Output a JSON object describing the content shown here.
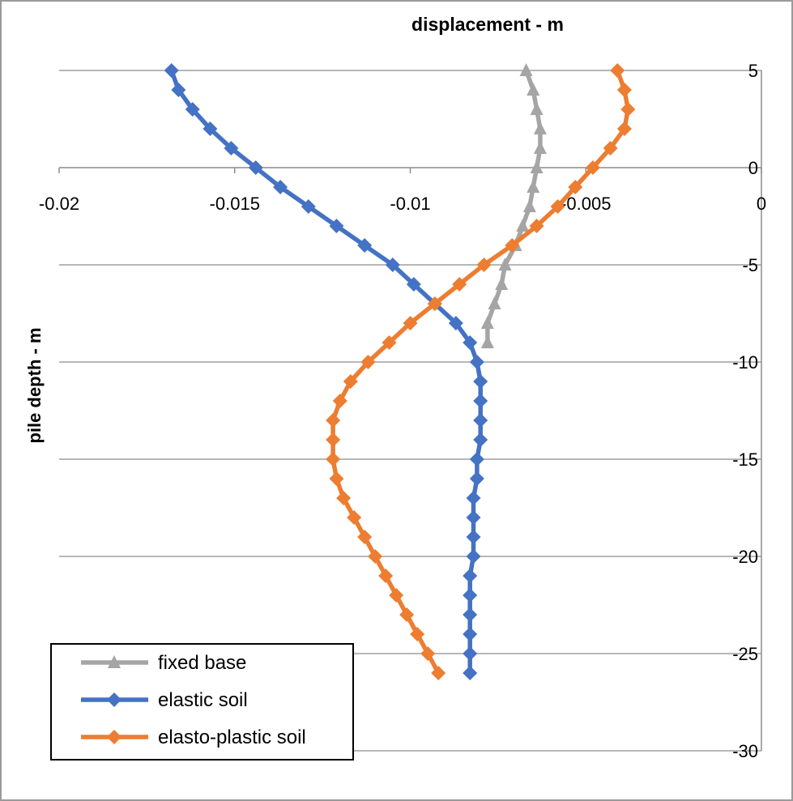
{
  "chart_data": {
    "type": "line",
    "title": "displacement - m",
    "xlabel": "displacement - m",
    "ylabel": "pile depth - m",
    "xlim": [
      -0.02,
      0
    ],
    "ylim": [
      -30,
      5
    ],
    "x_ticks": [
      -0.02,
      -0.015,
      -0.01,
      -0.005,
      0
    ],
    "x_tick_labels": [
      "-0.02",
      "-0.015",
      "-0.01",
      "-0.005",
      "0"
    ],
    "y_ticks": [
      5,
      0,
      -5,
      -10,
      -15,
      -20,
      -25,
      -30
    ],
    "y_tick_labels": [
      "5",
      "0",
      "-5",
      "-10",
      "-15",
      "-20",
      "-25",
      "-30"
    ],
    "x_axis_position": "top, crossing at depth 0",
    "y_axis_position": "right",
    "grid": "horizontal",
    "legend_position": "bottom-left",
    "series": [
      {
        "name": "fixed base",
        "color": "#a5a5a5",
        "marker": "triangle",
        "points": [
          {
            "x": -0.0067,
            "y": 5
          },
          {
            "x": -0.0065,
            "y": 4
          },
          {
            "x": -0.0064,
            "y": 3
          },
          {
            "x": -0.0063,
            "y": 2
          },
          {
            "x": -0.0063,
            "y": 1
          },
          {
            "x": -0.0064,
            "y": 0
          },
          {
            "x": -0.0065,
            "y": -1
          },
          {
            "x": -0.0066,
            "y": -2
          },
          {
            "x": -0.0068,
            "y": -3
          },
          {
            "x": -0.007,
            "y": -4
          },
          {
            "x": -0.0073,
            "y": -5
          },
          {
            "x": -0.0074,
            "y": -6
          },
          {
            "x": -0.0076,
            "y": -7
          },
          {
            "x": -0.0078,
            "y": -8
          },
          {
            "x": -0.0078,
            "y": -9
          }
        ]
      },
      {
        "name": "elastic soil",
        "color": "#4472c4",
        "marker": "diamond",
        "points": [
          {
            "x": -0.0168,
            "y": 5
          },
          {
            "x": -0.0166,
            "y": 4
          },
          {
            "x": -0.0162,
            "y": 3
          },
          {
            "x": -0.0157,
            "y": 2
          },
          {
            "x": -0.0151,
            "y": 1
          },
          {
            "x": -0.0144,
            "y": 0
          },
          {
            "x": -0.0137,
            "y": -1
          },
          {
            "x": -0.0129,
            "y": -2
          },
          {
            "x": -0.0121,
            "y": -3
          },
          {
            "x": -0.0113,
            "y": -4
          },
          {
            "x": -0.0105,
            "y": -5
          },
          {
            "x": -0.0099,
            "y": -6
          },
          {
            "x": -0.0093,
            "y": -7
          },
          {
            "x": -0.0087,
            "y": -8
          },
          {
            "x": -0.0083,
            "y": -9
          },
          {
            "x": -0.0081,
            "y": -10
          },
          {
            "x": -0.008,
            "y": -11
          },
          {
            "x": -0.008,
            "y": -12
          },
          {
            "x": -0.008,
            "y": -13
          },
          {
            "x": -0.008,
            "y": -14
          },
          {
            "x": -0.0081,
            "y": -15
          },
          {
            "x": -0.0081,
            "y": -16
          },
          {
            "x": -0.0082,
            "y": -17
          },
          {
            "x": -0.0082,
            "y": -18
          },
          {
            "x": -0.0082,
            "y": -19
          },
          {
            "x": -0.0082,
            "y": -20
          },
          {
            "x": -0.0083,
            "y": -21
          },
          {
            "x": -0.0083,
            "y": -22
          },
          {
            "x": -0.0083,
            "y": -23
          },
          {
            "x": -0.0083,
            "y": -24
          },
          {
            "x": -0.0083,
            "y": -25
          },
          {
            "x": -0.0083,
            "y": -26
          }
        ]
      },
      {
        "name": "elasto-plastic soil",
        "color": "#ed7d31",
        "marker": "diamond",
        "points": [
          {
            "x": -0.0041,
            "y": 5
          },
          {
            "x": -0.0039,
            "y": 4
          },
          {
            "x": -0.0038,
            "y": 3
          },
          {
            "x": -0.0039,
            "y": 2
          },
          {
            "x": -0.0043,
            "y": 1
          },
          {
            "x": -0.0048,
            "y": 0
          },
          {
            "x": -0.0053,
            "y": -1
          },
          {
            "x": -0.0058,
            "y": -2
          },
          {
            "x": -0.0064,
            "y": -3
          },
          {
            "x": -0.0071,
            "y": -4
          },
          {
            "x": -0.0079,
            "y": -5
          },
          {
            "x": -0.0086,
            "y": -6
          },
          {
            "x": -0.0093,
            "y": -7
          },
          {
            "x": -0.01,
            "y": -8
          },
          {
            "x": -0.0106,
            "y": -9
          },
          {
            "x": -0.0112,
            "y": -10
          },
          {
            "x": -0.0117,
            "y": -11
          },
          {
            "x": -0.012,
            "y": -12
          },
          {
            "x": -0.0122,
            "y": -13
          },
          {
            "x": -0.0122,
            "y": -14
          },
          {
            "x": -0.0122,
            "y": -15
          },
          {
            "x": -0.0121,
            "y": -16
          },
          {
            "x": -0.0119,
            "y": -17
          },
          {
            "x": -0.0116,
            "y": -18
          },
          {
            "x": -0.0113,
            "y": -19
          },
          {
            "x": -0.011,
            "y": -20
          },
          {
            "x": -0.0107,
            "y": -21
          },
          {
            "x": -0.0104,
            "y": -22
          },
          {
            "x": -0.0101,
            "y": -23
          },
          {
            "x": -0.0098,
            "y": -24
          },
          {
            "x": -0.0095,
            "y": -25
          },
          {
            "x": -0.0092,
            "y": -26
          }
        ]
      }
    ]
  },
  "legend": {
    "items": [
      {
        "label": "fixed base",
        "color": "#a5a5a5",
        "marker": "triangle"
      },
      {
        "label": "elastic soil",
        "color": "#4472c4",
        "marker": "diamond"
      },
      {
        "label": "elasto-plastic soil",
        "color": "#ed7d31",
        "marker": "diamond"
      }
    ]
  }
}
